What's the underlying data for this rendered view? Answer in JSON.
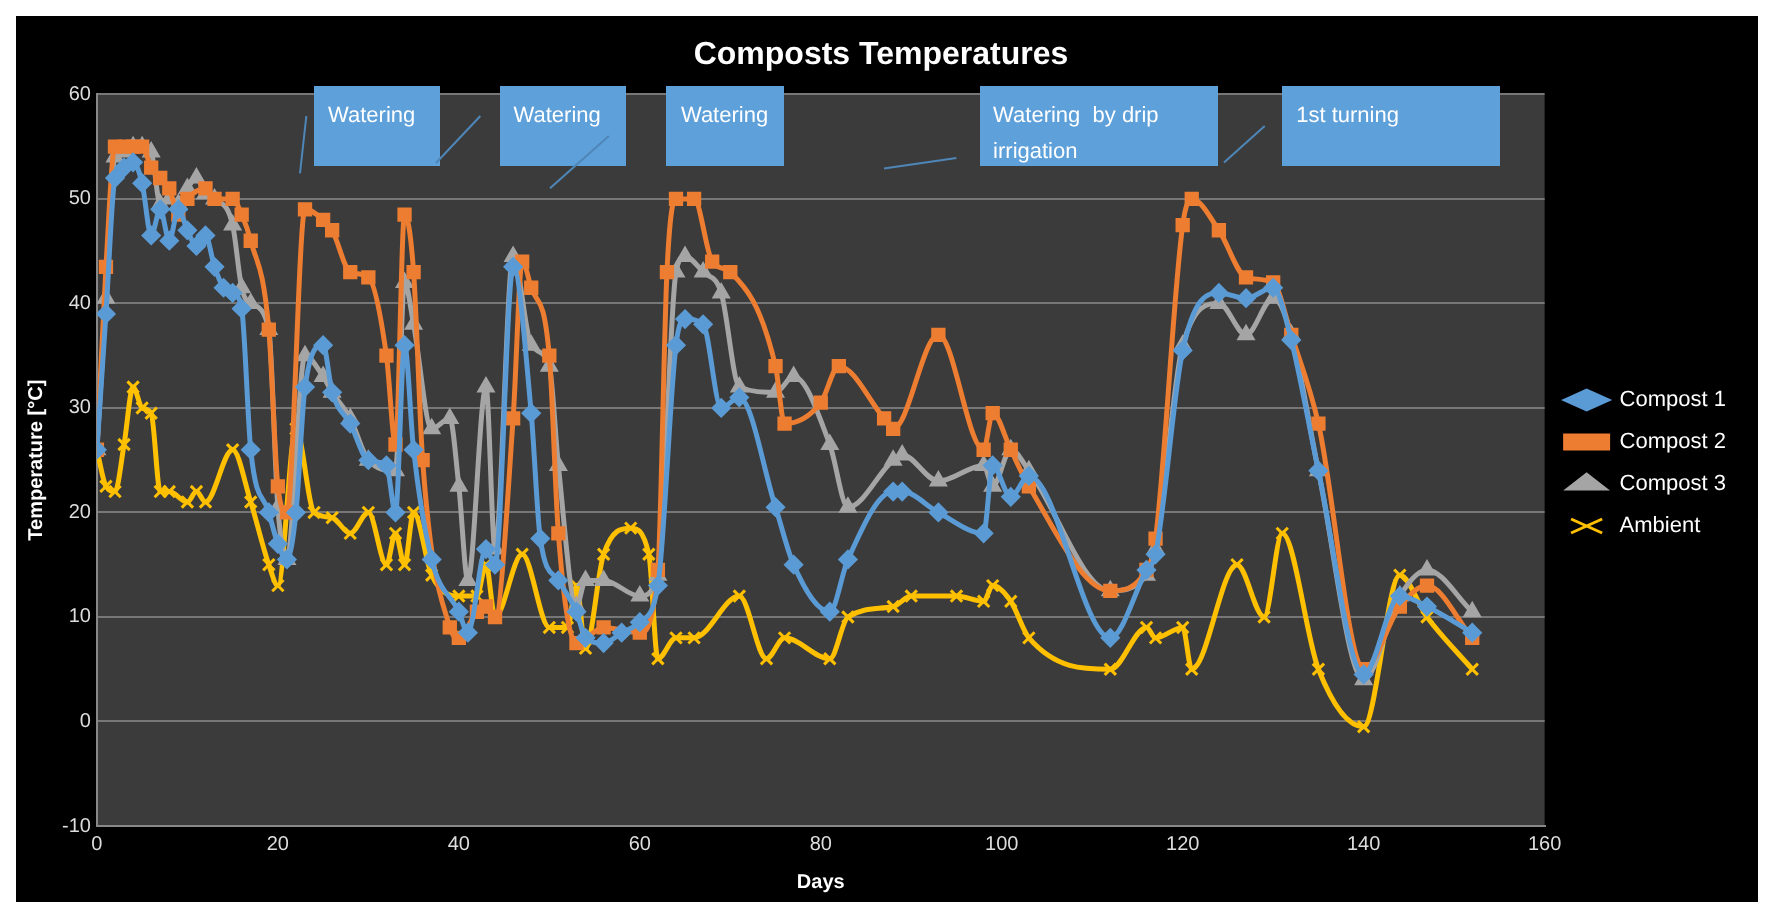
{
  "chart_data": {
    "type": "line",
    "title": "Composts Temperatures",
    "xlabel": "Days",
    "ylabel": "Temperature [°C]",
    "xlim": [
      0,
      160
    ],
    "xticks": [
      0,
      20,
      40,
      60,
      80,
      100,
      120,
      140,
      160
    ],
    "ylim": [
      -10,
      60
    ],
    "yticks": [
      -10,
      0,
      10,
      20,
      30,
      40,
      50,
      60
    ],
    "grid": "y",
    "legend": "right",
    "line_style": "solid",
    "annotations": [
      "Watering",
      "Watering",
      "Watering",
      "Watering  by drip irrigation",
      "1st turning"
    ],
    "series": [
      {
        "name": "Compost 1",
        "color": "#5b9bd5",
        "marker": "diamond",
        "x": [
          0,
          1,
          2,
          3,
          4,
          5,
          6,
          7,
          8,
          9,
          10,
          11,
          12,
          13,
          14,
          15,
          16,
          17,
          19,
          20,
          21,
          22,
          23,
          25,
          26,
          28,
          30,
          32,
          33,
          34,
          35,
          37,
          40,
          41,
          43,
          44,
          46,
          48,
          49,
          51,
          53,
          54,
          56,
          58,
          60,
          62,
          64,
          65,
          67,
          69,
          71,
          75,
          77,
          81,
          83,
          88,
          89,
          93,
          98,
          99,
          101,
          103,
          112,
          116,
          117,
          120,
          124,
          127,
          130,
          132,
          135,
          140,
          144,
          147,
          152
        ],
        "values": [
          26,
          39,
          52,
          53,
          53.5,
          51.5,
          46.5,
          49,
          46,
          49,
          47,
          45.5,
          46.5,
          43.5,
          41.5,
          41,
          39.5,
          26,
          20,
          17,
          15.5,
          20,
          32,
          36,
          31.5,
          28.5,
          25,
          24.5,
          20,
          36,
          26,
          15.5,
          10.5,
          8.5,
          16.5,
          15,
          43.5,
          29.5,
          17.5,
          13.5,
          10.5,
          8,
          7.5,
          8.5,
          9.5,
          13,
          36,
          38.5,
          38,
          30,
          31,
          20.5,
          15,
          10.5,
          15.5,
          22,
          22,
          20,
          18,
          24.5,
          21.5,
          23.5,
          8,
          14.5,
          16,
          35.5,
          41,
          40.5,
          41.5,
          36.5,
          24,
          4.5,
          12,
          11,
          8.5
        ]
      },
      {
        "name": "Compost 2",
        "color": "#ed7d31",
        "marker": "square",
        "x": [
          0,
          1,
          2,
          3,
          4,
          5,
          6,
          7,
          8,
          9,
          10,
          12,
          13,
          15,
          16,
          17,
          19,
          20,
          21,
          23,
          25,
          26,
          28,
          30,
          32,
          33,
          34,
          35,
          36,
          39,
          40,
          42,
          43,
          44,
          46,
          47,
          48,
          50,
          51,
          53,
          56,
          60,
          62,
          63,
          64,
          66,
          68,
          70,
          75,
          76,
          80,
          82,
          87,
          88,
          93,
          98,
          99,
          101,
          103,
          112,
          116,
          117,
          120,
          121,
          124,
          127,
          130,
          132,
          135,
          140,
          144,
          147,
          152
        ],
        "values": [
          26,
          43.5,
          55,
          55,
          55,
          55,
          53,
          52,
          51,
          48.5,
          50,
          51,
          50,
          50,
          48.5,
          46,
          37.5,
          22.5,
          20,
          49,
          48,
          47,
          43,
          42.5,
          35,
          26.5,
          48.5,
          43,
          25,
          9,
          8,
          10.5,
          11,
          10,
          29,
          44,
          41.5,
          35,
          18,
          7.5,
          9,
          8.5,
          14.5,
          43,
          50,
          50,
          44,
          43,
          34,
          28.5,
          30.5,
          34,
          29,
          28,
          37,
          26,
          29.5,
          26,
          22.5,
          12.5,
          14.5,
          17.5,
          47.5,
          50,
          47,
          42.5,
          42,
          37,
          28.5,
          5,
          11,
          13,
          8
        ]
      },
      {
        "name": "Compost 3",
        "color": "#a5a5a5",
        "marker": "triangle",
        "x": [
          0,
          1,
          2,
          3,
          4,
          5,
          6,
          7,
          8,
          9,
          10,
          11,
          12,
          13,
          15,
          16,
          17,
          19,
          20,
          21,
          23,
          25,
          26,
          28,
          30,
          33,
          34,
          35,
          37,
          39,
          40,
          41,
          43,
          44,
          46,
          48,
          50,
          51,
          53,
          54,
          56,
          60,
          62,
          64,
          65,
          67,
          69,
          71,
          75,
          77,
          81,
          83,
          88,
          89,
          93,
          98,
          99,
          101,
          103,
          112,
          116,
          117,
          120,
          124,
          127,
          130,
          132,
          135,
          140,
          144,
          147,
          152
        ],
        "values": [
          26,
          40.5,
          54,
          54.5,
          55,
          55,
          54.5,
          49.5,
          50,
          49.5,
          51,
          52,
          50.5,
          50,
          47.5,
          41.5,
          40,
          37.5,
          20.5,
          15.5,
          35,
          33,
          31.5,
          29,
          25,
          24,
          42,
          38,
          28,
          29,
          22.5,
          13.5,
          32,
          16.5,
          44.5,
          36,
          34,
          24.5,
          11,
          13.5,
          13.5,
          12,
          14,
          43,
          44.5,
          43,
          41,
          32,
          31.5,
          33,
          26.5,
          20.5,
          25,
          25.5,
          23,
          24.5,
          22.5,
          26,
          24,
          12.5,
          14,
          16.5,
          36,
          40,
          37,
          40.5,
          37,
          24,
          4,
          12,
          14.5,
          10.5
        ]
      },
      {
        "name": "Ambient",
        "color": "#ffc000",
        "marker": "cross",
        "x": [
          0,
          1,
          2,
          3,
          4,
          5,
          6,
          7,
          8,
          10,
          11,
          12,
          15,
          17,
          19,
          20,
          22,
          24,
          26,
          28,
          30,
          32,
          33,
          34,
          35,
          37,
          40,
          42,
          43,
          44,
          47,
          50,
          52,
          53,
          54,
          56,
          59,
          61,
          62,
          64,
          66,
          71,
          74,
          76,
          81,
          83,
          88,
          90,
          95,
          98,
          99,
          101,
          103,
          112,
          116,
          117,
          120,
          121,
          126,
          129,
          131,
          135,
          140,
          144,
          147,
          152
        ],
        "values": [
          26,
          22.5,
          22,
          26.5,
          32,
          30,
          29.5,
          22,
          22,
          21,
          22,
          21,
          26,
          21,
          15,
          13,
          28,
          20,
          19.5,
          18,
          20,
          15,
          18,
          15,
          20,
          14,
          12,
          12,
          15,
          10,
          16,
          9,
          9,
          13,
          7,
          16,
          18.5,
          16,
          6,
          8,
          8,
          12,
          6,
          8,
          6,
          10,
          11,
          12,
          12,
          11.5,
          13,
          11.5,
          8,
          5,
          9,
          8,
          9,
          5,
          15,
          10,
          18,
          5,
          -0.5,
          14,
          10,
          5
        ]
      }
    ]
  }
}
